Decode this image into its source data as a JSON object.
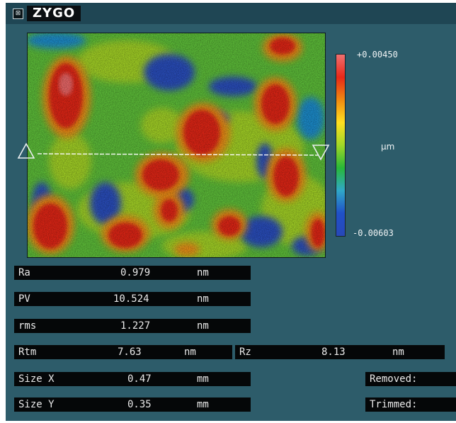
{
  "window": {
    "brand": "ZYGO"
  },
  "scale": {
    "max": "+0.00450",
    "unit": "µm",
    "min": "-0.00603",
    "colors": [
      "#f07070",
      "#e82818",
      "#f08a10",
      "#ffe020",
      "#a0d828",
      "#28b838",
      "#30a8c8",
      "#2050c8",
      "#2848b8"
    ]
  },
  "measurements": [
    {
      "label": "Ra",
      "value": "0.979",
      "unit": "nm"
    },
    {
      "label": "PV",
      "value": "10.524",
      "unit": "nm"
    },
    {
      "label": "rms",
      "value": "1.227",
      "unit": "nm"
    },
    {
      "label": "Rtm",
      "value": "7.63",
      "unit": "nm"
    },
    {
      "label": "Rz",
      "value": "8.13",
      "unit": "nm"
    },
    {
      "label": "Size X",
      "value": "0.47",
      "unit": "mm"
    },
    {
      "label": "Size Y",
      "value": "0.35",
      "unit": "mm"
    }
  ],
  "status": {
    "removed": "Removed:",
    "trimmed": "Trimmed:"
  },
  "map": {
    "marker": "profile-line"
  }
}
